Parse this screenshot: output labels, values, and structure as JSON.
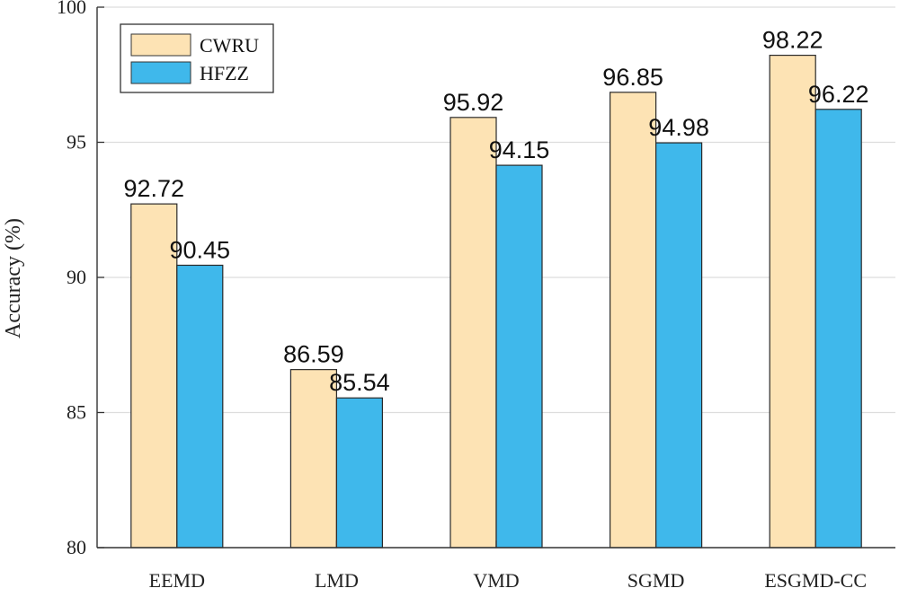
{
  "chart_data": {
    "type": "bar",
    "title": "",
    "xlabel": "",
    "ylabel": "Accuracy (%)",
    "ylim": [
      80,
      100
    ],
    "yticks": [
      80,
      85,
      90,
      95,
      100
    ],
    "grid": true,
    "legend_position": "top-left",
    "categories": [
      "EEMD",
      "LMD",
      "VMD",
      "SGMD",
      "ESGMD-CC"
    ],
    "series": [
      {
        "name": "CWRU",
        "color": "#FDE3B4",
        "values": [
          92.72,
          86.59,
          95.92,
          96.85,
          98.22
        ],
        "labels": [
          "92.72",
          "86.59",
          "95.92",
          "96.85",
          "98.22"
        ]
      },
      {
        "name": "HFZZ",
        "color": "#3FB8EB",
        "values": [
          90.45,
          85.54,
          94.15,
          94.98,
          96.22
        ],
        "labels": [
          "90.45",
          "85.54",
          "94.15",
          "94.98",
          "96.22"
        ]
      }
    ]
  }
}
